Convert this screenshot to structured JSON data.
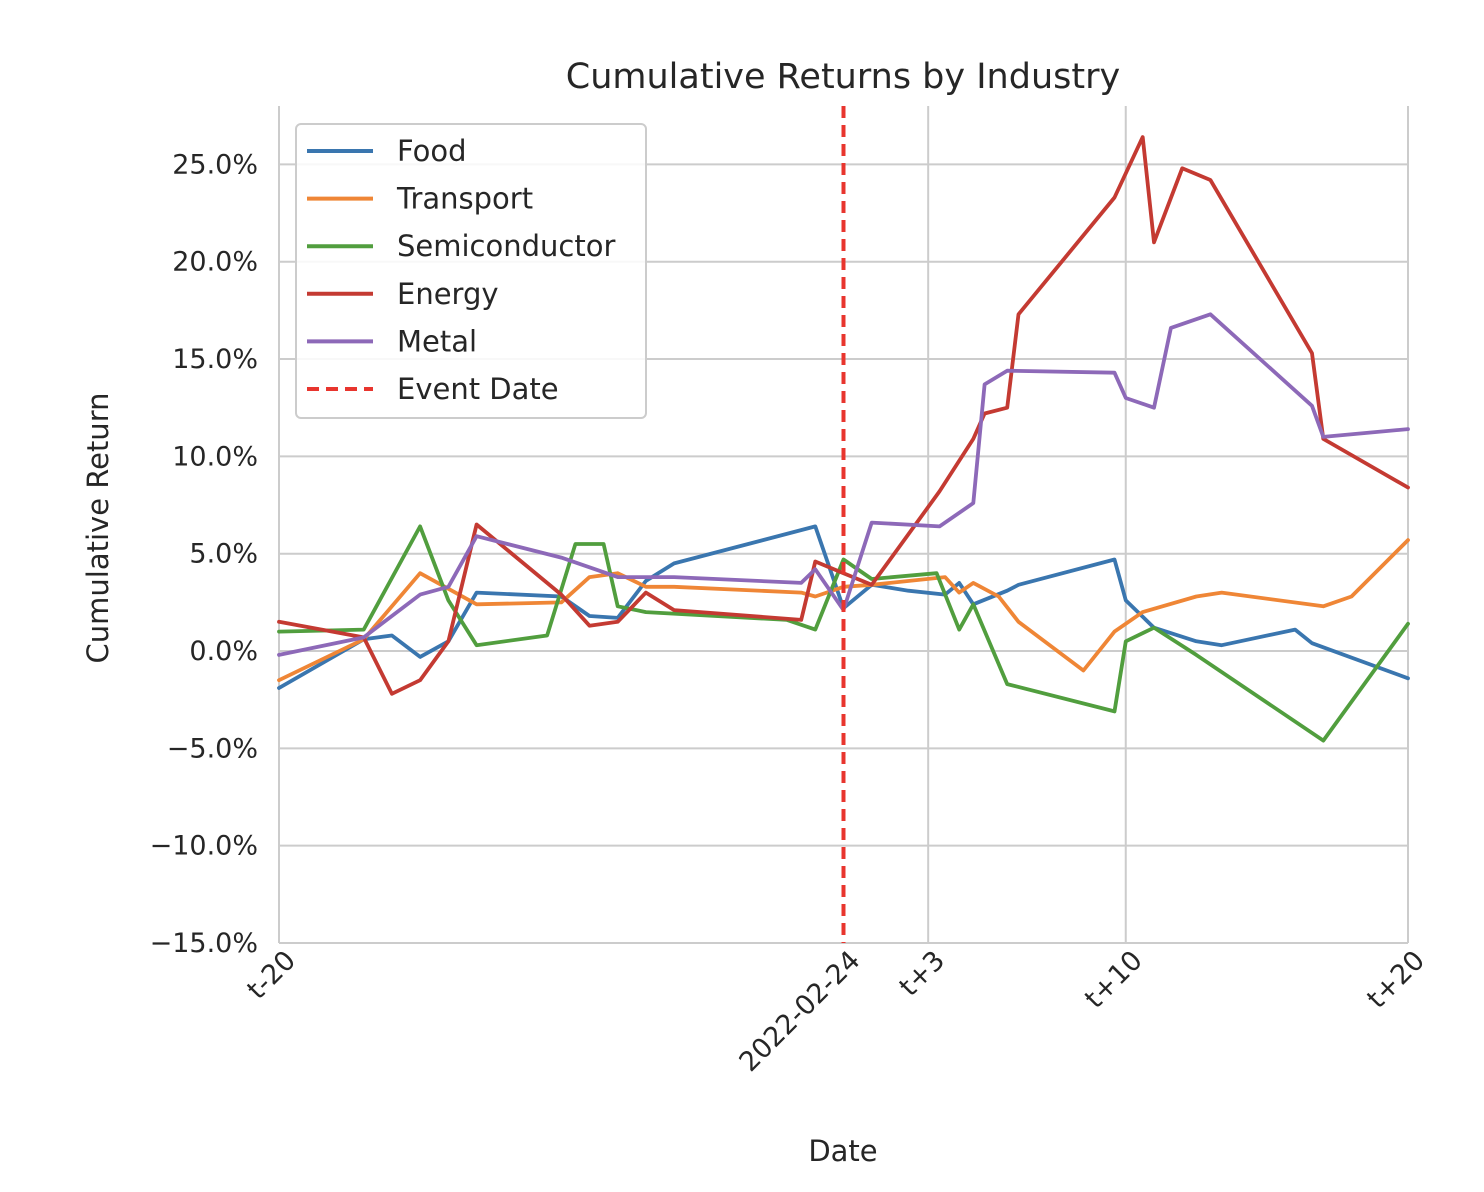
{
  "chart_data": {
    "type": "line",
    "title": "Cumulative Returns by Industry",
    "xlabel": "Date",
    "ylabel": "Cumulative Return",
    "xlim": [
      -20,
      20
    ],
    "ylim": [
      -0.15,
      0.28
    ],
    "x_ticks": [
      {
        "x": -20,
        "label": "t-20"
      },
      {
        "x": 0,
        "label": "2022-02-24"
      },
      {
        "x": 3,
        "label": "t+3"
      },
      {
        "x": 10,
        "label": "t+10"
      },
      {
        "x": 20,
        "label": "t+20"
      }
    ],
    "y_ticks": [
      {
        "y": -0.15,
        "label": "−15.0%"
      },
      {
        "y": -0.1,
        "label": "−10.0%"
      },
      {
        "y": -0.05,
        "label": "−5.0%"
      },
      {
        "y": 0.0,
        "label": "0.0%"
      },
      {
        "y": 0.05,
        "label": "5.0%"
      },
      {
        "y": 0.1,
        "label": "10.0%"
      },
      {
        "y": 0.15,
        "label": "15.0%"
      },
      {
        "y": 0.2,
        "label": "20.0%"
      },
      {
        "y": 0.25,
        "label": "25.0%"
      }
    ],
    "grid": true,
    "legend_position": "upper-left",
    "event": {
      "x": 0,
      "name": "Event Date",
      "color": "#e8352e",
      "style": "dashed"
    },
    "series": [
      {
        "name": "Food",
        "color": "#3a76af",
        "points": [
          [
            -20,
            -0.019
          ],
          [
            -17,
            0.006
          ],
          [
            -16,
            0.008
          ],
          [
            -15,
            -0.003
          ],
          [
            -14,
            0.005
          ],
          [
            -13,
            0.03
          ],
          [
            -10,
            0.028
          ],
          [
            -9,
            0.018
          ],
          [
            -8,
            0.017
          ],
          [
            -7,
            0.036
          ],
          [
            -6,
            0.045
          ],
          [
            -1,
            0.064
          ],
          [
            0,
            0.022
          ],
          [
            1,
            0.034
          ],
          [
            2.3,
            0.031
          ],
          [
            3.6,
            0.029
          ],
          [
            4.1,
            0.035
          ],
          [
            4.6,
            0.024
          ],
          [
            5.8,
            0.031
          ],
          [
            6.2,
            0.034
          ],
          [
            9.6,
            0.047
          ],
          [
            10.0,
            0.026
          ],
          [
            11.0,
            0.012
          ],
          [
            12.5,
            0.005
          ],
          [
            13.4,
            0.003
          ],
          [
            16.0,
            0.011
          ],
          [
            16.6,
            0.004
          ],
          [
            20.0,
            -0.014
          ]
        ]
      },
      {
        "name": "Transport",
        "color": "#ef8636",
        "points": [
          [
            -20,
            -0.015
          ],
          [
            -17,
            0.006
          ],
          [
            -15,
            0.04
          ],
          [
            -13,
            0.024
          ],
          [
            -10,
            0.025
          ],
          [
            -9,
            0.038
          ],
          [
            -8,
            0.04
          ],
          [
            -7,
            0.033
          ],
          [
            -6,
            0.033
          ],
          [
            -1.5,
            0.03
          ],
          [
            -1,
            0.028
          ],
          [
            0,
            0.033
          ],
          [
            1,
            0.034
          ],
          [
            3.6,
            0.038
          ],
          [
            4.1,
            0.03
          ],
          [
            4.6,
            0.035
          ],
          [
            5.5,
            0.028
          ],
          [
            6.2,
            0.015
          ],
          [
            8.5,
            -0.01
          ],
          [
            9.6,
            0.01
          ],
          [
            10.6,
            0.02
          ],
          [
            12.5,
            0.028
          ],
          [
            13.4,
            0.03
          ],
          [
            17.0,
            0.023
          ],
          [
            18.0,
            0.028
          ],
          [
            20.0,
            0.057
          ]
        ]
      },
      {
        "name": "Semiconductor",
        "color": "#519e3e",
        "points": [
          [
            -20,
            0.01
          ],
          [
            -17,
            0.011
          ],
          [
            -15,
            0.064
          ],
          [
            -14,
            0.026
          ],
          [
            -13,
            0.003
          ],
          [
            -10.5,
            0.008
          ],
          [
            -9.5,
            0.055
          ],
          [
            -8.5,
            0.055
          ],
          [
            -8,
            0.023
          ],
          [
            -7,
            0.02
          ],
          [
            -2,
            0.016
          ],
          [
            -1,
            0.011
          ],
          [
            0,
            0.047
          ],
          [
            1,
            0.037
          ],
          [
            3.3,
            0.04
          ],
          [
            4.1,
            0.011
          ],
          [
            4.6,
            0.024
          ],
          [
            5.8,
            -0.017
          ],
          [
            9.6,
            -0.031
          ],
          [
            10.0,
            0.005
          ],
          [
            11.0,
            0.012
          ],
          [
            12.5,
            -0.002
          ],
          [
            17.0,
            -0.046
          ],
          [
            20.0,
            0.014
          ]
        ]
      },
      {
        "name": "Energy",
        "color": "#c43a32",
        "points": [
          [
            -20,
            0.015
          ],
          [
            -17,
            0.007
          ],
          [
            -16,
            -0.022
          ],
          [
            -15,
            -0.015
          ],
          [
            -14,
            0.005
          ],
          [
            -13,
            0.065
          ],
          [
            -10,
            0.029
          ],
          [
            -9,
            0.013
          ],
          [
            -8,
            0.015
          ],
          [
            -7,
            0.03
          ],
          [
            -6,
            0.021
          ],
          [
            -1.5,
            0.016
          ],
          [
            -1,
            0.046
          ],
          [
            0,
            0.04
          ],
          [
            1,
            0.034
          ],
          [
            3.4,
            0.082
          ],
          [
            4.6,
            0.109
          ],
          [
            5.0,
            0.122
          ],
          [
            5.8,
            0.125
          ],
          [
            6.2,
            0.173
          ],
          [
            9.6,
            0.233
          ],
          [
            10.6,
            0.264
          ],
          [
            11.0,
            0.21
          ],
          [
            12.0,
            0.248
          ],
          [
            13.0,
            0.242
          ],
          [
            16.6,
            0.153
          ],
          [
            17.0,
            0.109
          ],
          [
            20.0,
            0.084
          ]
        ]
      },
      {
        "name": "Metal",
        "color": "#8d69b8",
        "points": [
          [
            -20,
            -0.002
          ],
          [
            -17,
            0.007
          ],
          [
            -15,
            0.029
          ],
          [
            -14,
            0.033
          ],
          [
            -13,
            0.059
          ],
          [
            -10,
            0.048
          ],
          [
            -8,
            0.038
          ],
          [
            -6,
            0.038
          ],
          [
            -1.5,
            0.035
          ],
          [
            -1,
            0.042
          ],
          [
            0,
            0.021
          ],
          [
            1,
            0.066
          ],
          [
            3.4,
            0.064
          ],
          [
            4.6,
            0.076
          ],
          [
            5.0,
            0.137
          ],
          [
            5.8,
            0.144
          ],
          [
            9.6,
            0.143
          ],
          [
            10.0,
            0.13
          ],
          [
            11.0,
            0.125
          ],
          [
            11.6,
            0.166
          ],
          [
            13.0,
            0.173
          ],
          [
            16.6,
            0.126
          ],
          [
            17.0,
            0.11
          ],
          [
            20.0,
            0.114
          ]
        ]
      }
    ]
  }
}
